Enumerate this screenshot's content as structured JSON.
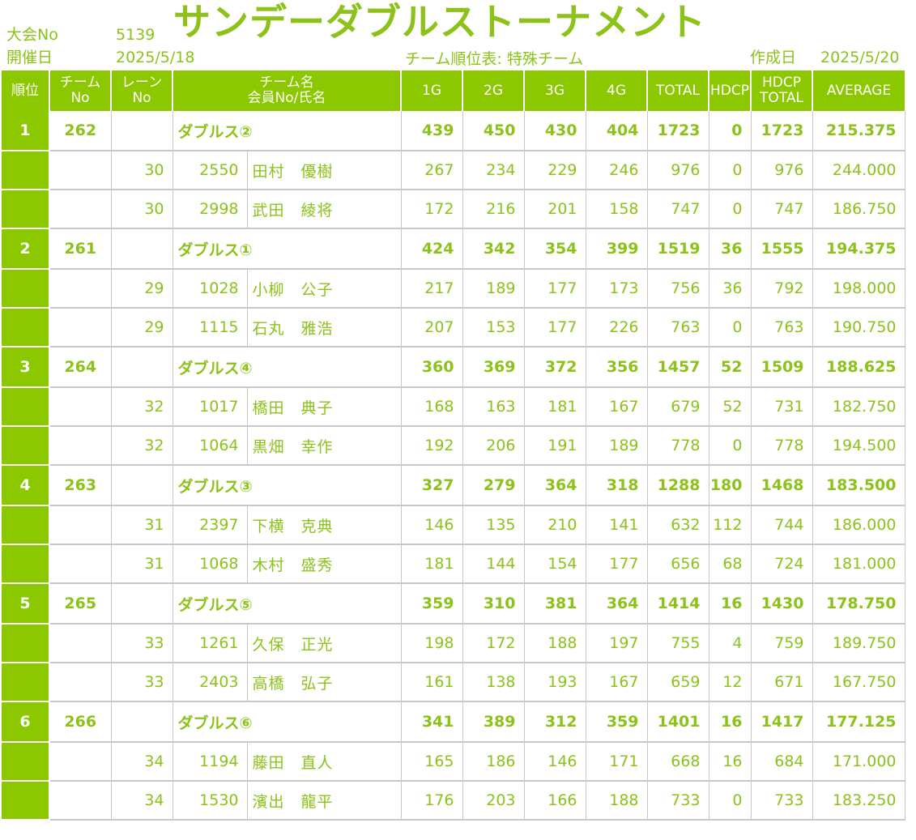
{
  "header": {
    "tournament_no_label": "大会No",
    "tournament_no": "5139",
    "date_label": "開催日",
    "date": "2025/5/18",
    "title": "サンデーダブルストーナメント",
    "subtitle": "チーム順位表: 特殊チーム",
    "created_label": "作成日",
    "created_date": "2025/5/20"
  },
  "columns": {
    "rank": "順位",
    "team_no": [
      "チーム",
      "No"
    ],
    "lane_no": [
      "レーン",
      "No"
    ],
    "team_name": [
      "チーム名",
      "会員No/氏名"
    ],
    "g1": "1G",
    "g2": "2G",
    "g3": "3G",
    "g4": "4G",
    "total": "TOTAL",
    "hdcp": "HDCP",
    "hdcp_total": [
      "HDCP",
      "TOTAL"
    ],
    "average": "AVERAGE"
  },
  "teams": [
    {
      "rank": "1",
      "team_no": "262",
      "name": "ダブルス②",
      "g1": "439",
      "g2": "450",
      "g3": "430",
      "g4": "404",
      "total": "1723",
      "hdcp": "0",
      "hdcp_total": "1723",
      "average": "215.375",
      "members": [
        {
          "lane": "30",
          "member_no": "2550",
          "name": "田村　優樹",
          "g1": "267",
          "g2": "234",
          "g3": "229",
          "g4": "246",
          "total": "976",
          "hdcp": "0",
          "hdcp_total": "976",
          "average": "244.000"
        },
        {
          "lane": "30",
          "member_no": "2998",
          "name": "武田　綾将",
          "g1": "172",
          "g2": "216",
          "g3": "201",
          "g4": "158",
          "total": "747",
          "hdcp": "0",
          "hdcp_total": "747",
          "average": "186.750"
        }
      ]
    },
    {
      "rank": "2",
      "team_no": "261",
      "name": "ダブルス①",
      "g1": "424",
      "g2": "342",
      "g3": "354",
      "g4": "399",
      "total": "1519",
      "hdcp": "36",
      "hdcp_total": "1555",
      "average": "194.375",
      "members": [
        {
          "lane": "29",
          "member_no": "1028",
          "name": "小柳　公子",
          "g1": "217",
          "g2": "189",
          "g3": "177",
          "g4": "173",
          "total": "756",
          "hdcp": "36",
          "hdcp_total": "792",
          "average": "198.000"
        },
        {
          "lane": "29",
          "member_no": "1115",
          "name": "石丸　雅浩",
          "g1": "207",
          "g2": "153",
          "g3": "177",
          "g4": "226",
          "total": "763",
          "hdcp": "0",
          "hdcp_total": "763",
          "average": "190.750"
        }
      ]
    },
    {
      "rank": "3",
      "team_no": "264",
      "name": "ダブルス④",
      "g1": "360",
      "g2": "369",
      "g3": "372",
      "g4": "356",
      "total": "1457",
      "hdcp": "52",
      "hdcp_total": "1509",
      "average": "188.625",
      "members": [
        {
          "lane": "32",
          "member_no": "1017",
          "name": "橋田　典子",
          "g1": "168",
          "g2": "163",
          "g3": "181",
          "g4": "167",
          "total": "679",
          "hdcp": "52",
          "hdcp_total": "731",
          "average": "182.750"
        },
        {
          "lane": "32",
          "member_no": "1064",
          "name": "黒畑　幸作",
          "g1": "192",
          "g2": "206",
          "g3": "191",
          "g4": "189",
          "total": "778",
          "hdcp": "0",
          "hdcp_total": "778",
          "average": "194.500"
        }
      ]
    },
    {
      "rank": "4",
      "team_no": "263",
      "name": "ダブルス③",
      "g1": "327",
      "g2": "279",
      "g3": "364",
      "g4": "318",
      "total": "1288",
      "hdcp": "180",
      "hdcp_total": "1468",
      "average": "183.500",
      "members": [
        {
          "lane": "31",
          "member_no": "2397",
          "name": "下横　克典",
          "g1": "146",
          "g2": "135",
          "g3": "210",
          "g4": "141",
          "total": "632",
          "hdcp": "112",
          "hdcp_total": "744",
          "average": "186.000"
        },
        {
          "lane": "31",
          "member_no": "1068",
          "name": "木村　盛秀",
          "g1": "181",
          "g2": "144",
          "g3": "154",
          "g4": "177",
          "total": "656",
          "hdcp": "68",
          "hdcp_total": "724",
          "average": "181.000"
        }
      ]
    },
    {
      "rank": "5",
      "team_no": "265",
      "name": "ダブルス⑤",
      "g1": "359",
      "g2": "310",
      "g3": "381",
      "g4": "364",
      "total": "1414",
      "hdcp": "16",
      "hdcp_total": "1430",
      "average": "178.750",
      "members": [
        {
          "lane": "33",
          "member_no": "1261",
          "name": "久保　正光",
          "g1": "198",
          "g2": "172",
          "g3": "188",
          "g4": "197",
          "total": "755",
          "hdcp": "4",
          "hdcp_total": "759",
          "average": "189.750"
        },
        {
          "lane": "33",
          "member_no": "2403",
          "name": "高橋　弘子",
          "g1": "161",
          "g2": "138",
          "g3": "193",
          "g4": "167",
          "total": "659",
          "hdcp": "12",
          "hdcp_total": "671",
          "average": "167.750"
        }
      ]
    },
    {
      "rank": "6",
      "team_no": "266",
      "name": "ダブルス⑥",
      "g1": "341",
      "g2": "389",
      "g3": "312",
      "g4": "359",
      "total": "1401",
      "hdcp": "16",
      "hdcp_total": "1417",
      "average": "177.125",
      "members": [
        {
          "lane": "34",
          "member_no": "1194",
          "name": "藤田　直人",
          "g1": "165",
          "g2": "186",
          "g3": "146",
          "g4": "171",
          "total": "668",
          "hdcp": "16",
          "hdcp_total": "684",
          "average": "171.000"
        },
        {
          "lane": "34",
          "member_no": "1530",
          "name": "濱出　龍平",
          "g1": "176",
          "g2": "203",
          "g3": "166",
          "g4": "188",
          "total": "733",
          "hdcp": "0",
          "hdcp_total": "733",
          "average": "183.250"
        }
      ]
    }
  ]
}
